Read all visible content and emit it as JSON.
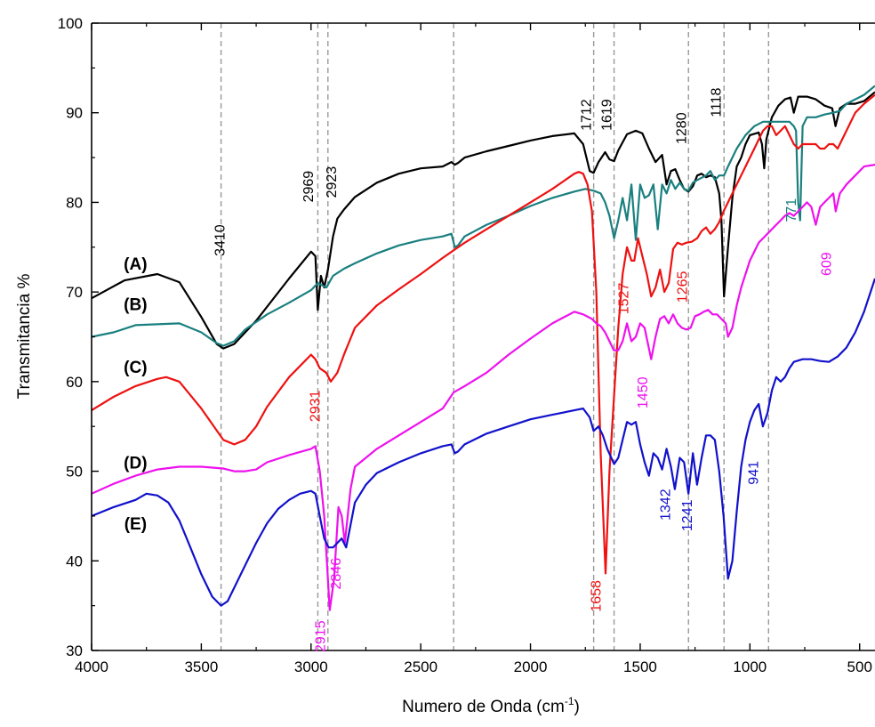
{
  "chart_data": {
    "type": "line",
    "title": "",
    "xlabel": "Numero de Onda (cm",
    "xlabel_sup": "-1",
    "xlabel_end": ")",
    "ylabel": "Transmitancia %",
    "xlim": [
      4000,
      430
    ],
    "ylim": [
      30,
      100
    ],
    "x_reversed": true,
    "grid": false,
    "x_ticks": [
      {
        "value": 4000,
        "label": "4000"
      },
      {
        "value": 3500,
        "label": "3500"
      },
      {
        "value": 3000,
        "label": "3000"
      },
      {
        "value": 2500,
        "label": "2500"
      },
      {
        "value": 2000,
        "label": "2000"
      },
      {
        "value": 1500,
        "label": "1500"
      },
      {
        "value": 1000,
        "label": "1000"
      },
      {
        "value": 500,
        "label": "500"
      }
    ],
    "y_ticks": [
      {
        "value": 30,
        "label": "30"
      },
      {
        "value": 40,
        "label": "40"
      },
      {
        "value": 50,
        "label": "50"
      },
      {
        "value": 60,
        "label": "60"
      },
      {
        "value": 70,
        "label": "70"
      },
      {
        "value": 80,
        "label": "80"
      },
      {
        "value": 90,
        "label": "90"
      },
      {
        "value": 100,
        "label": "100"
      }
    ],
    "reference_lines": [
      3410,
      2969,
      2923,
      2350,
      1712,
      1619,
      1280,
      1118,
      915
    ],
    "series": [
      {
        "label": "(A)",
        "color": "#000000",
        "x": [
          4000,
          3850,
          3700,
          3600,
          3500,
          3430,
          3400,
          3350,
          3250,
          3100,
          3000,
          2980,
          2969,
          2955,
          2940,
          2923,
          2900,
          2880,
          2850,
          2800,
          2700,
          2600,
          2500,
          2400,
          2360,
          2345,
          2330,
          2300,
          2200,
          2100,
          2000,
          1900,
          1800,
          1760,
          1730,
          1712,
          1690,
          1660,
          1640,
          1619,
          1600,
          1560,
          1520,
          1490,
          1460,
          1430,
          1400,
          1380,
          1360,
          1340,
          1320,
          1300,
          1280,
          1260,
          1240,
          1220,
          1200,
          1180,
          1160,
          1140,
          1130,
          1118,
          1100,
          1080,
          1060,
          1040,
          1020,
          1000,
          960,
          945,
          935,
          925,
          900,
          870,
          840,
          815,
          800,
          780,
          740,
          700,
          660,
          625,
          610,
          590,
          560,
          520,
          480,
          430
        ],
        "y": [
          69.3,
          71.3,
          72,
          71.1,
          67.2,
          64.2,
          63.7,
          64.2,
          66.8,
          71.5,
          74.5,
          74,
          68,
          71.8,
          70.5,
          72.5,
          76.2,
          78.2,
          79.2,
          80.6,
          82.2,
          83.2,
          83.8,
          84,
          84.5,
          84.2,
          84.4,
          85,
          85.7,
          86.3,
          86.9,
          87.4,
          87.7,
          86.5,
          83.5,
          83.3,
          84.5,
          85.6,
          84.8,
          84.6,
          85.8,
          87.6,
          88,
          87.7,
          86,
          84.5,
          85.3,
          82,
          83.5,
          83.7,
          82.5,
          81.5,
          81.2,
          81.8,
          83,
          83.2,
          82.8,
          83,
          82.8,
          81,
          78,
          69.5,
          75,
          80.5,
          84,
          85,
          86.5,
          87.5,
          87.8,
          86.5,
          83.8,
          87,
          89.5,
          90.8,
          91.5,
          91.7,
          90,
          91.8,
          91.8,
          91.5,
          90.8,
          90.5,
          88.5,
          90.5,
          91,
          91,
          91.3,
          92.3
        ]
      },
      {
        "label": "(B)",
        "color": "#1a7f7f",
        "x": [
          4000,
          3900,
          3800,
          3700,
          3600,
          3500,
          3430,
          3400,
          3350,
          3300,
          3200,
          3100,
          3000,
          2969,
          2930,
          2900,
          2850,
          2800,
          2700,
          2600,
          2500,
          2400,
          2360,
          2345,
          2330,
          2300,
          2200,
          2100,
          2000,
          1900,
          1800,
          1750,
          1712,
          1680,
          1660,
          1640,
          1619,
          1600,
          1580,
          1560,
          1540,
          1520,
          1500,
          1480,
          1460,
          1440,
          1420,
          1400,
          1380,
          1360,
          1340,
          1320,
          1300,
          1280,
          1260,
          1240,
          1200,
          1180,
          1160,
          1140,
          1118,
          1100,
          1060,
          1020,
          980,
          940,
          900,
          860,
          820,
          800,
          790,
          780,
          771,
          760,
          740,
          700,
          660,
          620,
          590,
          560,
          520,
          480,
          430
        ],
        "y": [
          65,
          65.5,
          66.3,
          66.4,
          66.5,
          65.5,
          64.3,
          64,
          64.5,
          65.8,
          67.5,
          68.8,
          70.2,
          71,
          70.5,
          71.8,
          72.6,
          73.2,
          74.3,
          75.2,
          75.8,
          76.2,
          76.5,
          75,
          75.2,
          76.2,
          77.5,
          78.5,
          79.6,
          80.5,
          81.2,
          81.5,
          81.3,
          81,
          80,
          78.5,
          76,
          78,
          80.5,
          78,
          82,
          75.8,
          82,
          80.5,
          80.8,
          82,
          77,
          82,
          81,
          82.5,
          81.5,
          82.2,
          81.5,
          81.3,
          82.2,
          82.5,
          83,
          83.5,
          82.5,
          83,
          83,
          84,
          86,
          87.5,
          88.5,
          89,
          89,
          89,
          89,
          88.5,
          88,
          80,
          78,
          88.5,
          89.5,
          89.5,
          89.8,
          90,
          90.2,
          91,
          91.5,
          92,
          93
        ]
      },
      {
        "label": "(C)",
        "color": "#ee1111",
        "x": [
          4000,
          3900,
          3800,
          3700,
          3660,
          3600,
          3500,
          3400,
          3350,
          3300,
          3250,
          3200,
          3100,
          3000,
          2980,
          2960,
          2931,
          2910,
          2880,
          2850,
          2800,
          2700,
          2600,
          2500,
          2400,
          2300,
          2200,
          2100,
          2000,
          1900,
          1800,
          1780,
          1760,
          1740,
          1720,
          1700,
          1680,
          1658,
          1640,
          1620,
          1600,
          1580,
          1560,
          1540,
          1527,
          1510,
          1490,
          1470,
          1450,
          1430,
          1410,
          1390,
          1370,
          1350,
          1330,
          1310,
          1290,
          1265,
          1240,
          1220,
          1200,
          1180,
          1160,
          1140,
          1120,
          1100,
          1060,
          1020,
          980,
          960,
          940,
          920,
          900,
          880,
          860,
          840,
          820,
          800,
          780,
          760,
          740,
          720,
          700,
          680,
          660,
          640,
          620,
          600,
          580,
          560,
          520,
          480,
          430
        ],
        "y": [
          56.8,
          58.3,
          59.5,
          60.3,
          60.5,
          60,
          57,
          53.5,
          53,
          53.5,
          55,
          57.2,
          60.5,
          63,
          62.5,
          61.5,
          61,
          60,
          61,
          63,
          66,
          68.5,
          70.3,
          72,
          73.8,
          75.5,
          77,
          78.5,
          80,
          81.5,
          83.2,
          83.4,
          83.2,
          82,
          79,
          70,
          52,
          38.6,
          50,
          58,
          66,
          72,
          75,
          73.5,
          73.5,
          76,
          74,
          72,
          69.5,
          70.5,
          72.5,
          70,
          71,
          74.8,
          75.5,
          75.3,
          75.5,
          75.6,
          76,
          76.8,
          77.2,
          76.5,
          77,
          77.8,
          79,
          80,
          82,
          84,
          86,
          87,
          88,
          88.5,
          88.5,
          87.5,
          88,
          88.5,
          87.5,
          86.5,
          86,
          86.5,
          86.5,
          86.5,
          86.5,
          86,
          86,
          86.5,
          86.5,
          86,
          87,
          88,
          90,
          91,
          92
        ]
      },
      {
        "label": "(D)",
        "color": "#ee11ee",
        "x": [
          4000,
          3900,
          3800,
          3700,
          3600,
          3500,
          3400,
          3350,
          3300,
          3250,
          3200,
          3100,
          3000,
          2980,
          2960,
          2940,
          2915,
          2895,
          2875,
          2860,
          2846,
          2820,
          2800,
          2700,
          2600,
          2500,
          2400,
          2350,
          2300,
          2200,
          2100,
          2000,
          1900,
          1800,
          1760,
          1720,
          1700,
          1680,
          1660,
          1640,
          1620,
          1600,
          1580,
          1560,
          1540,
          1520,
          1500,
          1480,
          1450,
          1430,
          1410,
          1390,
          1370,
          1350,
          1330,
          1310,
          1290,
          1270,
          1250,
          1230,
          1210,
          1190,
          1170,
          1150,
          1130,
          1110,
          1100,
          1080,
          1060,
          1040,
          1020,
          1000,
          980,
          960,
          940,
          920,
          900,
          880,
          860,
          840,
          820,
          800,
          780,
          760,
          740,
          720,
          700,
          680,
          660,
          640,
          620,
          609,
          590,
          560,
          520,
          480,
          430
        ],
        "y": [
          47.5,
          48.6,
          49.5,
          50.2,
          50.5,
          50.5,
          50.3,
          50,
          50,
          50.2,
          51,
          51.8,
          52.5,
          52.8,
          50,
          45,
          34.5,
          38,
          46,
          45,
          42,
          48,
          50.5,
          52.5,
          54,
          55.5,
          57,
          58.8,
          59.5,
          61,
          63,
          64.8,
          66.5,
          67.8,
          67.5,
          67,
          66.5,
          66.2,
          65.5,
          64.5,
          63.5,
          63.5,
          64.5,
          66.5,
          64.5,
          65,
          66.5,
          66,
          62.5,
          65,
          67,
          67.3,
          66.5,
          67.5,
          66.5,
          66,
          65.8,
          66,
          67.3,
          67.5,
          67.8,
          68,
          67.5,
          67.5,
          67,
          66.5,
          65,
          66,
          68.5,
          70.5,
          72,
          73.5,
          74.5,
          75.5,
          76,
          76.5,
          77,
          77.5,
          78,
          78.5,
          78.8,
          78.5,
          79,
          79.5,
          80,
          79.5,
          77.5,
          79.5,
          80,
          80.5,
          81,
          79,
          81,
          82,
          83,
          84,
          84.2
        ]
      },
      {
        "label": "(E)",
        "color": "#1111cc",
        "x": [
          4000,
          3900,
          3800,
          3750,
          3700,
          3650,
          3600,
          3550,
          3500,
          3450,
          3410,
          3380,
          3350,
          3300,
          3250,
          3200,
          3150,
          3100,
          3050,
          3000,
          2980,
          2960,
          2940,
          2920,
          2900,
          2880,
          2860,
          2840,
          2820,
          2800,
          2750,
          2700,
          2600,
          2500,
          2400,
          2360,
          2345,
          2330,
          2300,
          2200,
          2100,
          2000,
          1900,
          1800,
          1760,
          1730,
          1712,
          1690,
          1670,
          1650,
          1619,
          1600,
          1580,
          1560,
          1540,
          1520,
          1500,
          1480,
          1460,
          1440,
          1420,
          1400,
          1380,
          1360,
          1342,
          1320,
          1300,
          1280,
          1260,
          1241,
          1220,
          1200,
          1180,
          1160,
          1140,
          1120,
          1100,
          1080,
          1060,
          1040,
          1020,
          1000,
          980,
          960,
          941,
          920,
          900,
          880,
          860,
          840,
          820,
          800,
          760,
          720,
          680,
          640,
          600,
          560,
          520,
          480,
          430
        ],
        "y": [
          45,
          46,
          46.8,
          47.5,
          47.3,
          46.5,
          44.5,
          41.5,
          38.5,
          36,
          35,
          35.5,
          37,
          39.5,
          42,
          44.2,
          45.8,
          46.8,
          47.5,
          47.8,
          47.5,
          45,
          42.5,
          41.5,
          41.5,
          42,
          42.5,
          41.5,
          44,
          46.5,
          48.5,
          49.8,
          51,
          52,
          52.8,
          53,
          52,
          52.2,
          53,
          54.2,
          55,
          55.8,
          56.3,
          56.8,
          57,
          56,
          54.5,
          55,
          54,
          52.5,
          50.8,
          51.5,
          53.5,
          55.5,
          55.2,
          55.5,
          53,
          51,
          49.5,
          52,
          51.5,
          50.2,
          52.5,
          50.5,
          48,
          51.5,
          51,
          47.5,
          52,
          48.5,
          51.5,
          54,
          54,
          53.5,
          50,
          45,
          38,
          40,
          45.5,
          50.5,
          53.5,
          55.5,
          56.8,
          57.5,
          55,
          56.5,
          59,
          60.5,
          60,
          60.5,
          61.5,
          62.2,
          62.5,
          62.5,
          62.3,
          62.2,
          62.8,
          63.8,
          65.5,
          67.8,
          71.5
        ]
      }
    ],
    "series_labels": [
      {
        "text": "(A)",
        "x": 3800,
        "y": 72.5
      },
      {
        "text": "(B)",
        "x": 3800,
        "y": 68
      },
      {
        "text": "(C)",
        "x": 3800,
        "y": 61
      },
      {
        "text": "(D)",
        "x": 3800,
        "y": 50.3
      },
      {
        "text": "(E)",
        "x": 3800,
        "y": 43.5
      }
    ],
    "annotations": [
      {
        "text": "3410",
        "x": 3395,
        "y": 74,
        "color": "#000000"
      },
      {
        "text": "2969",
        "x": 2990,
        "y": 80,
        "color": "#000000"
      },
      {
        "text": "2923",
        "x": 2885,
        "y": 80.5,
        "color": "#000000"
      },
      {
        "text": "1712",
        "x": 1725,
        "y": 88,
        "color": "#000000"
      },
      {
        "text": "1619",
        "x": 1632,
        "y": 88,
        "color": "#000000"
      },
      {
        "text": "1280",
        "x": 1292,
        "y": 86.5,
        "color": "#000000"
      },
      {
        "text": "1118",
        "x": 1134,
        "y": 89.5,
        "color": "#000000"
      },
      {
        "text": "771",
        "x": 790,
        "y": 77.8,
        "color": "#1a7f7f"
      },
      {
        "text": "2931",
        "x": 2960,
        "y": 55.5,
        "color": "#ee1111"
      },
      {
        "text": "1527",
        "x": 1555,
        "y": 67.5,
        "color": "#ee1111"
      },
      {
        "text": "1265",
        "x": 1287,
        "y": 68.8,
        "color": "#ee1111"
      },
      {
        "text": "1450",
        "x": 1467,
        "y": 57,
        "color": "#ee11ee"
      },
      {
        "text": "609",
        "x": 630,
        "y": 71.8,
        "color": "#ee11ee"
      },
      {
        "text": "2915",
        "x": 2937,
        "y": 29.8,
        "color": "#ee11ee"
      },
      {
        "text": "2846",
        "x": 2865,
        "y": 36.8,
        "color": "#ee11ee"
      },
      {
        "text": "1658",
        "x": 1680,
        "y": 34.3,
        "color": "#ee1111"
      },
      {
        "text": "1342",
        "x": 1364,
        "y": 44.5,
        "color": "#1111cc"
      },
      {
        "text": "1241",
        "x": 1264,
        "y": 43.3,
        "color": "#1111cc"
      },
      {
        "text": "941",
        "x": 962,
        "y": 48.5,
        "color": "#1111cc"
      }
    ]
  }
}
